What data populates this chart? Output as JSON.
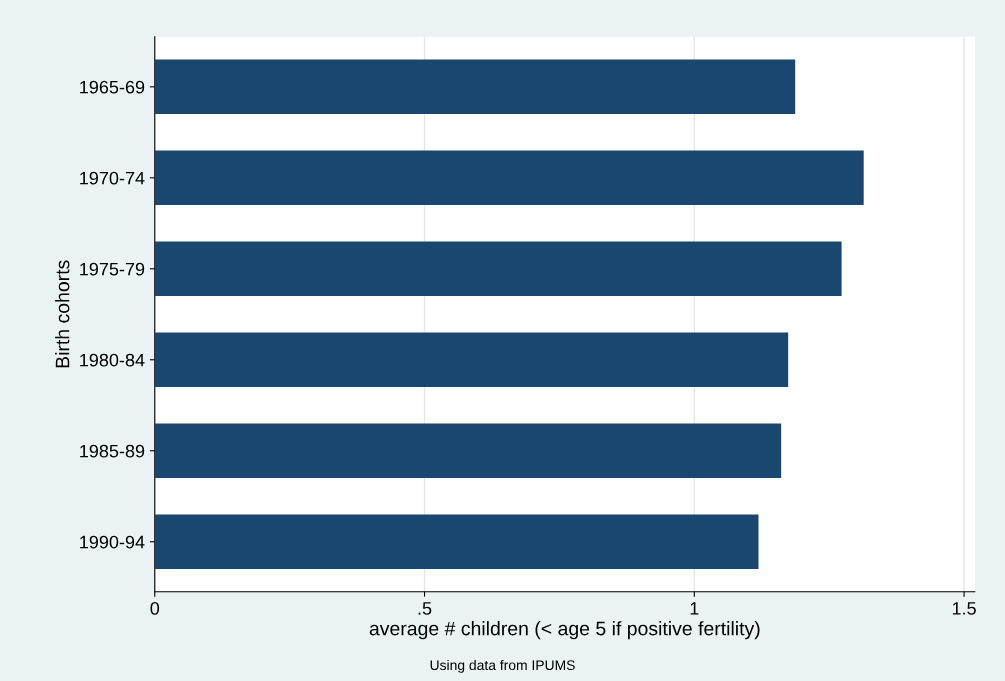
{
  "chart_data": {
    "type": "bar",
    "orientation": "horizontal",
    "categories": [
      "1965-69",
      "1970-74",
      "1975-79",
      "1980-84",
      "1985-89",
      "1990-94"
    ],
    "values": [
      1.187,
      1.314,
      1.273,
      1.174,
      1.161,
      1.119
    ],
    "color": "#1a476f",
    "xlabel": "average # children (< age 5 if positive fertility)",
    "ylabel": "Birth cohorts",
    "annotations": [
      "Using data from IPUMS"
    ],
    "xlim": [
      0,
      1.52
    ],
    "xticks": [
      0,
      {
        "value": 0.5,
        "label": ".5"
      },
      1,
      1.5
    ],
    "grid": "x",
    "legend": false
  }
}
